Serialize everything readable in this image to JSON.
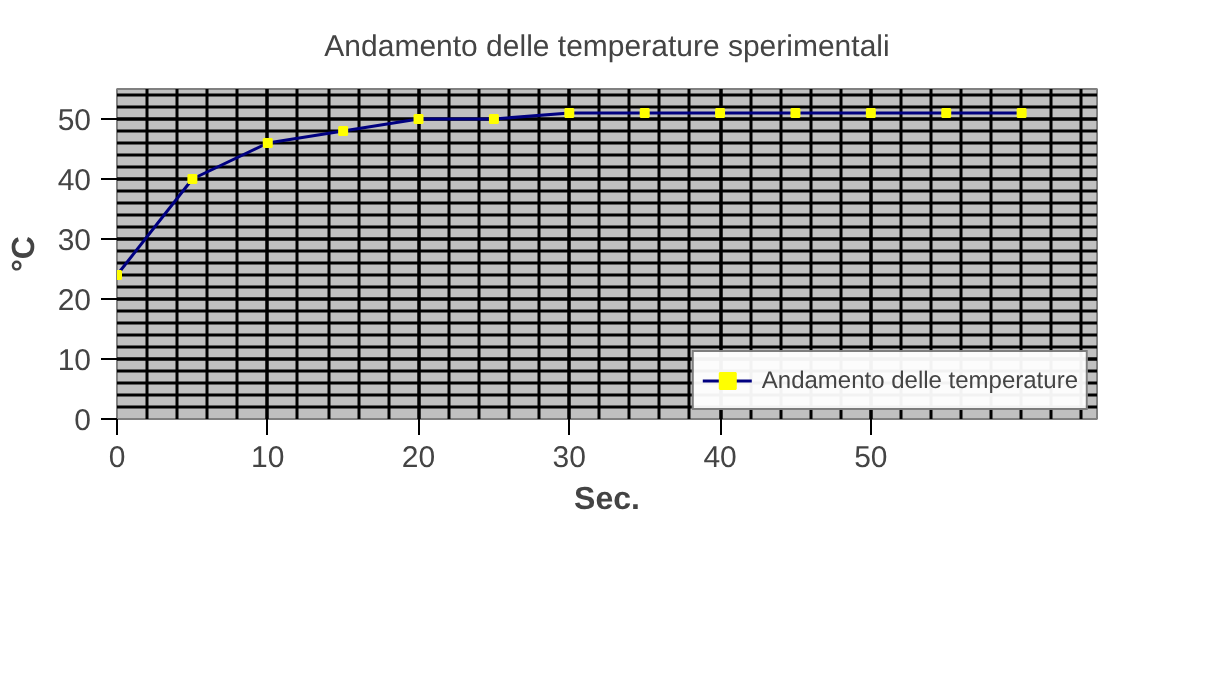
{
  "chart_data": {
    "type": "line",
    "title": "Andamento delle temperature sperimentali",
    "xlabel": "Sec.",
    "ylabel": "°C",
    "x": [
      0,
      5,
      10,
      15,
      20,
      25,
      30,
      35,
      40,
      45,
      50,
      55,
      60
    ],
    "series": [
      {
        "name": "Andamento delle temperature",
        "color": "#000080",
        "values": [
          24,
          40,
          46,
          48,
          50,
          50,
          51,
          51,
          51,
          51,
          51,
          51,
          51
        ]
      }
    ],
    "xlim": [
      0,
      65
    ],
    "xticks": [
      0,
      10,
      20,
      30,
      40,
      50
    ],
    "ylim": [
      0,
      55
    ],
    "yticks": [
      0,
      10,
      20,
      30,
      40,
      50
    ],
    "grid": true,
    "legend": "bottom right",
    "marker": "square",
    "line_style": "solid"
  }
}
